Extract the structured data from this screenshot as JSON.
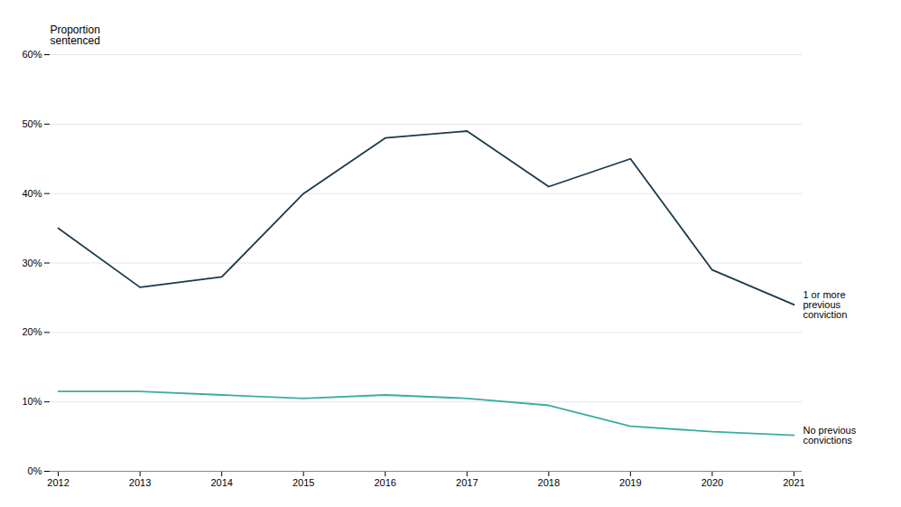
{
  "chart_data": {
    "type": "line",
    "ylabel": "Proportion\nsentenced",
    "x": [
      2012,
      2013,
      2014,
      2015,
      2016,
      2017,
      2018,
      2019,
      2020,
      2021
    ],
    "series": [
      {
        "name": "1 or more\nprevious\nconviction",
        "color": "#1a3a4a",
        "values": [
          0.35,
          0.265,
          0.28,
          0.4,
          0.48,
          0.49,
          0.41,
          0.45,
          0.29,
          0.24
        ]
      },
      {
        "name": "No previous\nconvictions",
        "color": "#3aada0",
        "values": [
          0.115,
          0.115,
          0.11,
          0.105,
          0.11,
          0.105,
          0.095,
          0.065,
          0.057,
          0.052
        ]
      }
    ],
    "xlim": [
      2011.9,
      2021.1
    ],
    "xticks": [
      2012,
      2013,
      2014,
      2015,
      2016,
      2017,
      2018,
      2019,
      2020,
      2021
    ],
    "ylim": [
      0.0,
      0.6
    ],
    "yticks": [
      {
        "value": 0.0,
        "label": "0%"
      },
      {
        "value": 0.1,
        "label": "10%"
      },
      {
        "value": 0.2,
        "label": "20%"
      },
      {
        "value": 0.3,
        "label": "30%"
      },
      {
        "value": 0.4,
        "label": "40%"
      },
      {
        "value": 0.5,
        "label": "50%"
      },
      {
        "value": 0.6,
        "label": "60%"
      }
    ],
    "grid": "y"
  }
}
